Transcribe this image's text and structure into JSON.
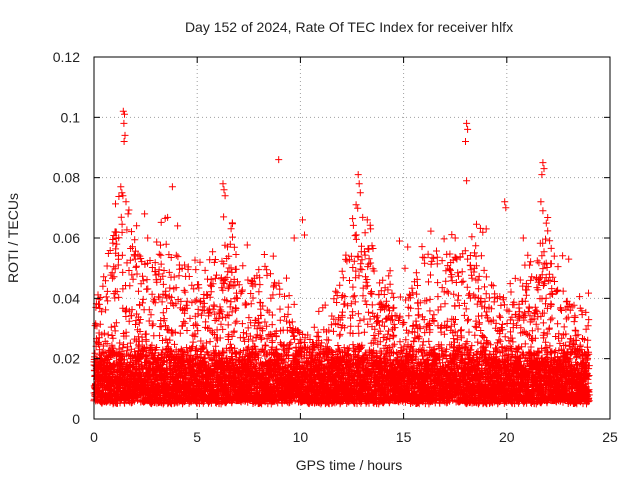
{
  "chart_data": {
    "type": "scatter",
    "title": "Day 152 of 2024, Rate Of TEC Index for receiver hlfx",
    "xlabel": "GPS time / hours",
    "ylabel": "ROTI / TECUs",
    "xlim": [
      0,
      25
    ],
    "ylim": [
      0,
      0.12
    ],
    "xticks": [
      0,
      5,
      10,
      15,
      20,
      25
    ],
    "xtick_labels": [
      "0",
      "5",
      "10",
      "15",
      "20",
      "25"
    ],
    "yticks": [
      0,
      0.02,
      0.04,
      0.06,
      0.08,
      0.1,
      0.12
    ],
    "ytick_labels": [
      "0",
      "0.02",
      "0.04",
      "0.06",
      "0.08",
      "0.1",
      "0.12"
    ],
    "grid": true,
    "marker": "+",
    "colors": {
      "series": "#ff0000",
      "grid": "#a0a0a0",
      "axis": "#000000"
    },
    "data_range_x": [
      0,
      24
    ],
    "baseline_band": [
      0.005,
      0.025
    ],
    "series": [
      {
        "name": "ROTI",
        "note": "dense cloud of ~8000 points between 0 and 24 h; representative outliers listed",
        "outliers": [
          {
            "x": 1.42,
            "y": 0.102
          },
          {
            "x": 1.48,
            "y": 0.101
          },
          {
            "x": 1.45,
            "y": 0.098
          },
          {
            "x": 1.5,
            "y": 0.094
          },
          {
            "x": 1.46,
            "y": 0.092
          },
          {
            "x": 1.3,
            "y": 0.077
          },
          {
            "x": 1.35,
            "y": 0.075
          },
          {
            "x": 1.4,
            "y": 0.074
          },
          {
            "x": 1.55,
            "y": 0.072
          },
          {
            "x": 1.65,
            "y": 0.068
          },
          {
            "x": 2.45,
            "y": 0.068
          },
          {
            "x": 2.6,
            "y": 0.06
          },
          {
            "x": 3.8,
            "y": 0.077
          },
          {
            "x": 4.05,
            "y": 0.064
          },
          {
            "x": 6.25,
            "y": 0.078
          },
          {
            "x": 6.3,
            "y": 0.076
          },
          {
            "x": 6.35,
            "y": 0.074
          },
          {
            "x": 6.28,
            "y": 0.067
          },
          {
            "x": 6.7,
            "y": 0.065
          },
          {
            "x": 8.95,
            "y": 0.086
          },
          {
            "x": 10.1,
            "y": 0.066
          },
          {
            "x": 10.2,
            "y": 0.061
          },
          {
            "x": 9.7,
            "y": 0.06
          },
          {
            "x": 12.7,
            "y": 0.071
          },
          {
            "x": 12.8,
            "y": 0.081
          },
          {
            "x": 12.85,
            "y": 0.078
          },
          {
            "x": 12.9,
            "y": 0.075
          },
          {
            "x": 13.4,
            "y": 0.063
          },
          {
            "x": 14.8,
            "y": 0.059
          },
          {
            "x": 15.2,
            "y": 0.057
          },
          {
            "x": 17.5,
            "y": 0.06
          },
          {
            "x": 18.05,
            "y": 0.098
          },
          {
            "x": 18.1,
            "y": 0.096
          },
          {
            "x": 18.0,
            "y": 0.092
          },
          {
            "x": 18.05,
            "y": 0.079
          },
          {
            "x": 19.0,
            "y": 0.063
          },
          {
            "x": 19.9,
            "y": 0.072
          },
          {
            "x": 19.95,
            "y": 0.07
          },
          {
            "x": 20.8,
            "y": 0.06
          },
          {
            "x": 21.75,
            "y": 0.085
          },
          {
            "x": 21.8,
            "y": 0.083
          },
          {
            "x": 21.7,
            "y": 0.081
          },
          {
            "x": 21.65,
            "y": 0.072
          },
          {
            "x": 21.75,
            "y": 0.069
          },
          {
            "x": 22.3,
            "y": 0.054
          },
          {
            "x": 23.0,
            "y": 0.053
          }
        ]
      }
    ]
  }
}
